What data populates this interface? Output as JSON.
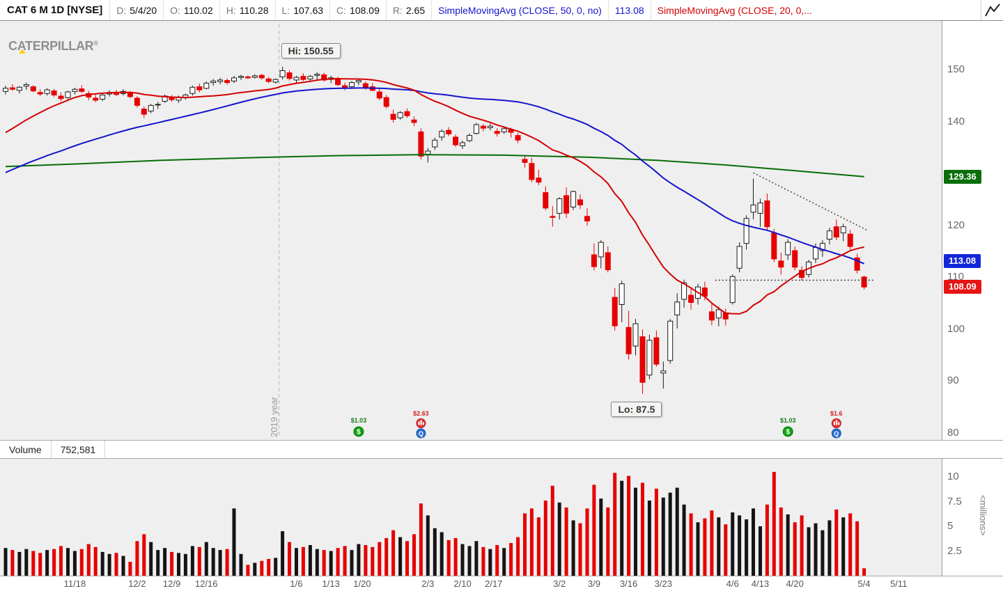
{
  "header": {
    "symbol": "CAT 6 M 1D [NYSE]",
    "fields": [
      {
        "label": "D:",
        "value": "5/4/20"
      },
      {
        "label": "O:",
        "value": "110.02"
      },
      {
        "label": "H:",
        "value": "110.28"
      },
      {
        "label": "L:",
        "value": "107.63"
      },
      {
        "label": "C:",
        "value": "108.09"
      },
      {
        "label": "R:",
        "value": "2.65"
      }
    ],
    "indicators": [
      {
        "label": "SimpleMovingAvg (CLOSE, 50, 0, no)",
        "value": "113.08",
        "color": "#1414cc"
      },
      {
        "label": "SimpleMovingAvg (CLOSE, 20, 0,...",
        "value": "",
        "color": "#d40000"
      }
    ],
    "chart_icon": "line-chart-icon"
  },
  "watermark": {
    "text": "CATERPILLAR",
    "registered": "®"
  },
  "annotations": {
    "high": {
      "text": "Hi: 150.55",
      "index": 40,
      "price": 150.55
    },
    "low": {
      "text": "Lo: 87.5",
      "index": 92,
      "price": 87.5
    },
    "year_divider": {
      "text": "2019 year",
      "index": 39.5
    }
  },
  "price_axis": {
    "ticks": [
      150,
      140,
      120,
      110,
      100,
      90,
      80
    ],
    "badges": [
      {
        "label": "129.36",
        "price": 129.36,
        "bg": "#0b6e0b",
        "name": "sma200-value-badge"
      },
      {
        "label": "113.08",
        "price": 113.08,
        "bg": "#1227d8",
        "name": "sma50-value-badge"
      },
      {
        "label": "108.09",
        "price": 108.09,
        "bg": "#e61414",
        "name": "last-price-badge"
      }
    ]
  },
  "volume_pane": {
    "label": "Volume",
    "value": "752,581",
    "ticks": [
      10,
      7.5,
      5,
      2.5
    ],
    "unit": "<millions>"
  },
  "x_axis": {
    "ticks": [
      [
        "11/18",
        10
      ],
      [
        "12/2",
        19
      ],
      [
        "12/9",
        24
      ],
      [
        "12/16",
        29
      ],
      [
        "1/6",
        42
      ],
      [
        "1/13",
        47
      ],
      [
        "1/20",
        51.5
      ],
      [
        "2/3",
        61
      ],
      [
        "2/10",
        66
      ],
      [
        "2/17",
        70.5
      ],
      [
        "3/2",
        80
      ],
      [
        "3/9",
        85
      ],
      [
        "3/16",
        90
      ],
      [
        "3/23",
        95
      ],
      [
        "4/6",
        105
      ],
      [
        "4/13",
        109
      ],
      [
        "4/20",
        114
      ],
      [
        "5/4",
        124
      ],
      [
        "5/11",
        129
      ]
    ]
  },
  "events": [
    {
      "date": "1/17",
      "type": "dividend",
      "label": "$1.03"
    },
    {
      "date": "1/31",
      "type": "earnings",
      "label": "$2.63"
    },
    {
      "date": "4/17",
      "type": "dividend",
      "label": "$1.03"
    },
    {
      "date": "4/28",
      "type": "earnings",
      "label": "$1.6"
    }
  ],
  "colors": {
    "up": "#1a1a1a",
    "down": "#e60000",
    "sma20": "#d40000",
    "sma50": "#1414cc",
    "sma200": "#076d07",
    "dividend": "#12a012",
    "earnings_red": "#e23333",
    "earnings_blue": "#2a6fd4",
    "plot_bg": "#efefef"
  },
  "chart_data": {
    "type": "candlestick+volume",
    "symbol": "CAT",
    "exchange": "NYSE",
    "timeframe": "1D",
    "range": "6M",
    "price_range_shown": [
      80,
      155
    ],
    "volume_range_shown_millions": [
      0,
      11
    ],
    "columns": [
      "date",
      "open",
      "high",
      "low",
      "close",
      "volume_millions"
    ],
    "candles": [
      [
        "11/4",
        145.8,
        146.9,
        145.2,
        146.4,
        2.8
      ],
      [
        "11/5",
        146.5,
        147.2,
        145.9,
        146.2,
        2.6
      ],
      [
        "11/6",
        146.0,
        146.8,
        145.4,
        146.6,
        2.4
      ],
      [
        "11/7",
        146.8,
        147.5,
        146.1,
        147.1,
        2.7
      ],
      [
        "11/8",
        146.7,
        147.0,
        145.6,
        145.9,
        2.5
      ],
      [
        "11/11",
        145.6,
        146.2,
        144.9,
        145.3,
        2.3
      ],
      [
        "11/12",
        145.4,
        146.4,
        145.0,
        146.1,
        2.6
      ],
      [
        "11/13",
        145.9,
        146.3,
        144.7,
        145.1,
        2.7
      ],
      [
        "11/14",
        144.9,
        145.6,
        143.9,
        144.4,
        3.0
      ],
      [
        "11/15",
        144.6,
        145.9,
        144.3,
        145.7,
        2.8
      ],
      [
        "11/18",
        145.8,
        146.5,
        145.2,
        146.2,
        2.5
      ],
      [
        "11/19",
        146.3,
        147.0,
        145.5,
        145.8,
        2.7
      ],
      [
        "11/20",
        145.4,
        145.9,
        144.1,
        144.7,
        3.2
      ],
      [
        "11/21",
        144.5,
        145.2,
        143.7,
        144.1,
        2.9
      ],
      [
        "11/22",
        144.3,
        145.4,
        143.9,
        145.1,
        2.4
      ],
      [
        "11/25",
        145.3,
        146.0,
        144.8,
        145.6,
        2.2
      ],
      [
        "11/26",
        145.6,
        146.1,
        144.9,
        145.2,
        2.3
      ],
      [
        "11/27",
        145.4,
        146.2,
        145.0,
        145.8,
        2.0
      ],
      [
        "11/29",
        145.6,
        145.9,
        144.5,
        144.8,
        1.4
      ],
      [
        "12/2",
        144.5,
        144.9,
        142.7,
        143.1,
        3.5
      ],
      [
        "12/3",
        142.4,
        142.9,
        140.7,
        141.4,
        4.2
      ],
      [
        "12/4",
        142.0,
        143.4,
        141.6,
        143.1,
        3.4
      ],
      [
        "12/5",
        143.2,
        143.8,
        142.4,
        143.3,
        2.6
      ],
      [
        "12/6",
        143.9,
        145.2,
        143.6,
        144.9,
        2.8
      ],
      [
        "12/9",
        144.6,
        145.1,
        143.8,
        144.2,
        2.4
      ],
      [
        "12/10",
        144.1,
        145.0,
        143.6,
        144.6,
        2.3
      ],
      [
        "12/11",
        144.7,
        145.4,
        144.2,
        145.1,
        2.2
      ],
      [
        "12/12",
        145.4,
        146.9,
        145.0,
        146.6,
        3.0
      ],
      [
        "12/13",
        146.7,
        147.3,
        145.6,
        146.1,
        2.9
      ],
      [
        "12/16",
        146.4,
        147.7,
        146.2,
        147.4,
        3.4
      ],
      [
        "12/17",
        147.5,
        148.2,
        146.9,
        147.8,
        2.8
      ],
      [
        "12/18",
        147.7,
        148.4,
        147.2,
        148.0,
        2.6
      ],
      [
        "12/19",
        147.9,
        148.3,
        147.1,
        147.5,
        2.7
      ],
      [
        "12/20",
        147.8,
        148.8,
        147.4,
        148.4,
        6.8
      ],
      [
        "12/23",
        148.5,
        149.0,
        148.0,
        148.7,
        2.2
      ],
      [
        "12/24",
        148.6,
        148.9,
        148.2,
        148.4,
        1.1
      ],
      [
        "12/26",
        148.5,
        149.1,
        148.3,
        148.8,
        1.3
      ],
      [
        "12/27",
        148.9,
        149.2,
        148.1,
        148.4,
        1.5
      ],
      [
        "12/30",
        148.2,
        148.6,
        147.4,
        147.7,
        1.7
      ],
      [
        "12/31",
        147.6,
        148.3,
        147.3,
        148.1,
        1.8
      ],
      [
        "1/2",
        148.6,
        150.55,
        148.1,
        149.8,
        4.5
      ],
      [
        "1/3",
        149.4,
        149.9,
        147.9,
        148.3,
        3.4
      ],
      [
        "1/6",
        148.0,
        148.8,
        147.4,
        148.5,
        2.8
      ],
      [
        "1/7",
        148.7,
        149.3,
        147.8,
        148.1,
        2.9
      ],
      [
        "1/8",
        148.2,
        149.0,
        147.6,
        148.7,
        3.1
      ],
      [
        "1/9",
        148.9,
        149.5,
        148.1,
        149.1,
        2.7
      ],
      [
        "1/10",
        149.0,
        149.4,
        147.7,
        148.0,
        2.6
      ],
      [
        "1/13",
        148.1,
        148.8,
        147.4,
        148.4,
        2.5
      ],
      [
        "1/14",
        148.2,
        148.6,
        146.8,
        147.1,
        2.8
      ],
      [
        "1/15",
        146.9,
        147.5,
        146.0,
        146.4,
        3.0
      ],
      [
        "1/16",
        146.7,
        147.8,
        146.3,
        147.5,
        2.6
      ],
      [
        "1/17",
        147.6,
        148.3,
        147.0,
        147.9,
        3.2
      ],
      [
        "1/21",
        147.3,
        147.7,
        146.1,
        146.5,
        3.1
      ],
      [
        "1/22",
        146.7,
        147.4,
        145.8,
        146.0,
        2.9
      ],
      [
        "1/23",
        145.7,
        146.3,
        144.1,
        144.5,
        3.4
      ],
      [
        "1/24",
        144.6,
        145.1,
        142.5,
        142.9,
        3.8
      ],
      [
        "1/27",
        141.4,
        142.3,
        139.8,
        140.4,
        4.6
      ],
      [
        "1/28",
        140.7,
        142.0,
        140.3,
        141.7,
        3.9
      ],
      [
        "1/29",
        141.9,
        142.5,
        140.7,
        141.1,
        3.5
      ],
      [
        "1/30",
        140.3,
        141.0,
        139.1,
        139.8,
        4.2
      ],
      [
        "1/31",
        138.0,
        138.7,
        132.7,
        133.3,
        7.3
      ],
      [
        "2/3",
        133.7,
        134.9,
        132.1,
        134.3,
        6.1
      ],
      [
        "2/4",
        135.1,
        136.9,
        134.5,
        136.4,
        4.8
      ],
      [
        "2/5",
        137.0,
        138.5,
        136.3,
        138.1,
        4.4
      ],
      [
        "2/6",
        138.3,
        138.9,
        137.2,
        137.6,
        3.6
      ],
      [
        "2/7",
        137.0,
        137.5,
        135.1,
        135.5,
        3.8
      ],
      [
        "2/10",
        135.3,
        136.3,
        134.7,
        135.9,
        3.2
      ],
      [
        "2/11",
        136.3,
        137.7,
        136.0,
        137.3,
        3.0
      ],
      [
        "2/12",
        137.7,
        139.7,
        137.5,
        139.4,
        3.5
      ],
      [
        "2/13",
        139.1,
        139.5,
        138.1,
        138.7,
        2.9
      ],
      [
        "2/14",
        138.8,
        139.6,
        138.3,
        139.1,
        2.7
      ],
      [
        "2/18",
        138.1,
        138.7,
        137.1,
        137.7,
        3.1
      ],
      [
        "2/19",
        138.0,
        139.1,
        137.6,
        138.6,
        2.8
      ],
      [
        "2/20",
        138.4,
        138.8,
        136.9,
        137.9,
        3.3
      ],
      [
        "2/21",
        137.3,
        137.8,
        135.8,
        136.4,
        3.9
      ],
      [
        "2/24",
        132.7,
        133.5,
        131.1,
        132.1,
        6.3
      ],
      [
        "2/25",
        131.9,
        133.0,
        128.3,
        128.8,
        6.8
      ],
      [
        "2/26",
        129.1,
        130.7,
        127.7,
        128.3,
        5.9
      ],
      [
        "2/27",
        126.3,
        127.5,
        122.9,
        123.3,
        7.6
      ],
      [
        "2/28",
        121.7,
        123.7,
        119.7,
        121.5,
        9.1
      ],
      [
        "3/2",
        122.3,
        125.4,
        121.1,
        125.1,
        7.4
      ],
      [
        "3/3",
        125.7,
        127.3,
        121.4,
        122.3,
        6.9
      ],
      [
        "3/4",
        123.5,
        126.7,
        122.9,
        126.5,
        5.6
      ],
      [
        "3/5",
        124.9,
        125.9,
        123.1,
        123.9,
        5.3
      ],
      [
        "3/6",
        121.7,
        123.3,
        119.9,
        120.8,
        6.8
      ],
      [
        "3/9",
        114.3,
        116.5,
        111.3,
        112.0,
        9.2
      ],
      [
        "3/10",
        113.9,
        117.1,
        111.7,
        116.7,
        7.8
      ],
      [
        "3/11",
        114.7,
        115.9,
        110.9,
        111.4,
        6.9
      ],
      [
        "3/12",
        106.1,
        107.9,
        99.7,
        100.6,
        10.4
      ],
      [
        "3/13",
        104.7,
        109.3,
        101.3,
        108.7,
        9.6
      ],
      [
        "3/16",
        100.3,
        103.5,
        94.1,
        95.2,
        10.1
      ],
      [
        "3/17",
        96.7,
        101.9,
        94.9,
        101.0,
        8.9
      ],
      [
        "3/18",
        98.5,
        99.9,
        87.5,
        89.7,
        9.4
      ],
      [
        "3/19",
        91.1,
        98.9,
        90.3,
        97.8,
        7.6
      ],
      [
        "3/20",
        98.3,
        99.7,
        92.7,
        93.2,
        8.8
      ],
      [
        "3/23",
        91.5,
        93.7,
        88.5,
        91.9,
        7.9
      ],
      [
        "3/24",
        93.9,
        101.9,
        93.3,
        101.5,
        8.4
      ],
      [
        "3/25",
        102.7,
        106.9,
        100.1,
        105.2,
        8.9
      ],
      [
        "3/26",
        105.7,
        109.5,
        104.1,
        108.9,
        7.2
      ],
      [
        "3/27",
        106.5,
        108.1,
        103.7,
        105.1,
        6.3
      ],
      [
        "3/30",
        105.9,
        108.7,
        104.7,
        108.1,
        5.4
      ],
      [
        "3/31",
        107.9,
        109.1,
        105.5,
        106.3,
        5.8
      ],
      [
        "4/1",
        103.3,
        105.1,
        100.7,
        101.7,
        6.6
      ],
      [
        "4/2",
        102.1,
        104.3,
        100.5,
        103.7,
        5.9
      ],
      [
        "4/3",
        103.1,
        103.9,
        100.7,
        101.9,
        5.2
      ],
      [
        "4/6",
        105.1,
        110.5,
        104.7,
        110.1,
        6.4
      ],
      [
        "4/7",
        111.7,
        116.7,
        110.9,
        115.9,
        6.1
      ],
      [
        "4/8",
        116.5,
        121.9,
        115.3,
        121.3,
        5.7
      ],
      [
        "4/9",
        122.5,
        129.0,
        121.1,
        123.9,
        6.8
      ],
      [
        "4/13",
        122.3,
        125.1,
        119.7,
        124.3,
        5.0
      ],
      [
        "4/14",
        124.7,
        126.1,
        119.1,
        119.7,
        7.2
      ],
      [
        "4/15",
        118.5,
        119.3,
        112.9,
        113.5,
        10.5
      ],
      [
        "4/16",
        113.1,
        114.7,
        110.5,
        111.9,
        6.9
      ],
      [
        "4/17",
        114.3,
        117.3,
        113.3,
        116.7,
        6.2
      ],
      [
        "4/20",
        115.1,
        115.9,
        111.3,
        111.9,
        5.4
      ],
      [
        "4/21",
        111.3,
        112.1,
        109.3,
        109.9,
        6.1
      ],
      [
        "4/22",
        110.5,
        113.3,
        109.9,
        112.9,
        4.9
      ],
      [
        "4/23",
        113.5,
        116.5,
        112.7,
        115.7,
        5.3
      ],
      [
        "4/24",
        115.1,
        117.1,
        113.9,
        116.5,
        4.6
      ],
      [
        "4/27",
        117.3,
        119.5,
        116.3,
        118.9,
        5.6
      ],
      [
        "4/28",
        119.7,
        121.1,
        117.1,
        117.7,
        6.7
      ],
      [
        "4/29",
        118.5,
        120.3,
        116.9,
        119.7,
        5.9
      ],
      [
        "4/30",
        118.3,
        119.1,
        115.3,
        115.9,
        6.3
      ],
      [
        "5/1",
        113.7,
        114.5,
        110.7,
        111.3,
        5.5
      ],
      [
        "5/4",
        110.02,
        110.28,
        107.63,
        108.09,
        0.75
      ]
    ],
    "sma_seed_closes": [
      118,
      117.5,
      118.2,
      119,
      119.5,
      120,
      120.8,
      121.5,
      122,
      121.4,
      122,
      122.6,
      123.4,
      124,
      124.8,
      125.2,
      125.8,
      126.4,
      127,
      126.5,
      127.2,
      127.8,
      128.4,
      129,
      128.6,
      129.2,
      129.8,
      130.2,
      130.8,
      131.4,
      131,
      130.4,
      129.8,
      130.6,
      131.2,
      131.8,
      132.4,
      133,
      133.8,
      134.4,
      136,
      138.5,
      140.2,
      141.6,
      142.8,
      143.6,
      144.4,
      145,
      145.5,
      145.8
    ],
    "sma200_points": [
      [
        0,
        131.3
      ],
      [
        0.08,
        131.8
      ],
      [
        0.18,
        132.5
      ],
      [
        0.28,
        133.0
      ],
      [
        0.38,
        133.4
      ],
      [
        0.48,
        133.6
      ],
      [
        0.58,
        133.5
      ],
      [
        0.68,
        133.1
      ],
      [
        0.76,
        132.5
      ],
      [
        0.84,
        131.6
      ],
      [
        0.92,
        130.5
      ],
      [
        1,
        129.36
      ]
    ],
    "trendlines": [
      {
        "points": [
          [
            108,
            130.1
          ],
          [
            124.5,
            119.0
          ]
        ],
        "style": "dotted",
        "name": "descending-resistance"
      },
      {
        "points": [
          [
            102.5,
            109.4
          ],
          [
            125.5,
            109.4
          ]
        ],
        "style": "dotted",
        "name": "horizontal-support"
      }
    ]
  }
}
